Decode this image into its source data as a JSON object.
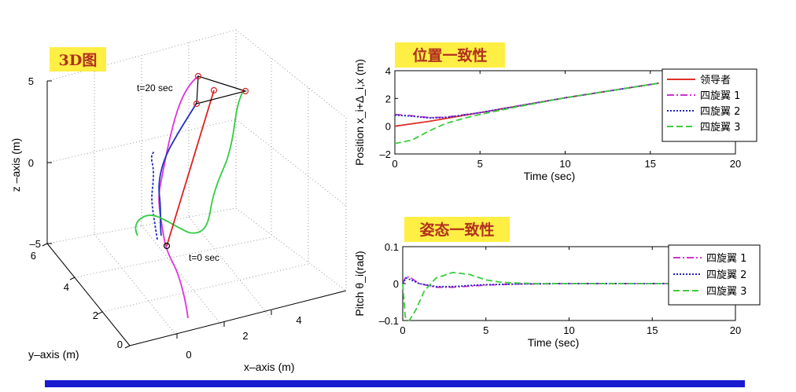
{
  "panel_3d": {
    "tag": "3D图",
    "xlabel": "x–axis (m)",
    "ylabel": "y–axis (m)",
    "zlabel": "z –axis (m)",
    "z_ticks": [
      "5",
      "0",
      "–5"
    ],
    "y_ticks": [
      "6",
      "4",
      "2",
      "0"
    ],
    "x_ticks": [
      "0",
      "2",
      "4"
    ],
    "annotation_end": "t=20 sec",
    "annotation_start": "t=0 sec"
  },
  "chart_data": [
    {
      "type": "line",
      "tag": "位置一致性",
      "xlabel": "Time (sec)",
      "ylabel": "Position x_i+Δ_i,x (m)",
      "xlim": [
        0,
        20
      ],
      "ylim": [
        -2,
        4
      ],
      "x_ticks": [
        "0",
        "5",
        "10",
        "15",
        "20"
      ],
      "y_ticks": [
        "4",
        "2",
        "0",
        "–2"
      ],
      "legend_position": "top-right",
      "series": [
        {
          "name": "领导者",
          "color": "#e0302a",
          "dash": "",
          "x": [
            0,
            2,
            5,
            10,
            15.5
          ],
          "y": [
            0,
            0.35,
            0.98,
            2.05,
            3.1
          ]
        },
        {
          "name": "四旋翼 1",
          "color": "#cc33cc",
          "dash": "9 3 2 3",
          "x": [
            0,
            1,
            2,
            3,
            5,
            10,
            15.5
          ],
          "y": [
            0.85,
            0.75,
            0.62,
            0.65,
            0.98,
            2.05,
            3.1
          ]
        },
        {
          "name": "四旋翼 2",
          "color": "#2222bb",
          "dash": "2 2",
          "x": [
            0,
            1,
            2,
            3,
            5,
            10,
            15.5
          ],
          "y": [
            0.8,
            0.72,
            0.6,
            0.63,
            0.98,
            2.05,
            3.1
          ]
        },
        {
          "name": "四旋翼 3",
          "color": "#3ecc3e",
          "dash": "8 4",
          "x": [
            0,
            1,
            2,
            3,
            4,
            5,
            7,
            10,
            15.5
          ],
          "y": [
            -1.25,
            -1.0,
            -0.35,
            0.2,
            0.55,
            0.85,
            1.35,
            2.05,
            3.1
          ]
        }
      ]
    },
    {
      "type": "line",
      "tag": "姿态一致性",
      "xlabel": "Time (sec)",
      "ylabel": "Pitch θ_i(rad)",
      "xlim": [
        0,
        20
      ],
      "ylim": [
        -0.1,
        0.1
      ],
      "x_ticks": [
        "0",
        "5",
        "10",
        "15",
        "20"
      ],
      "y_ticks": [
        "0.1",
        "0",
        "–0.1"
      ],
      "legend_position": "top-right",
      "series": [
        {
          "name": "四旋翼 1",
          "color": "#cc33cc",
          "dash": "9 3 2 3",
          "x": [
            0,
            0.2,
            0.5,
            1,
            2,
            3,
            4,
            5,
            7,
            10,
            16
          ],
          "y": [
            0,
            0.02,
            0.015,
            0.0,
            -0.01,
            -0.01,
            -0.007,
            -0.004,
            -0.001,
            0,
            0
          ]
        },
        {
          "name": "四旋翼 2",
          "color": "#2222bb",
          "dash": "2 2",
          "x": [
            0,
            0.2,
            0.5,
            1,
            2,
            3,
            4,
            5,
            7,
            10,
            16
          ],
          "y": [
            0,
            0.015,
            0.01,
            0.0,
            -0.008,
            -0.008,
            -0.005,
            -0.003,
            -0.001,
            0,
            0
          ]
        },
        {
          "name": "四旋翼 3",
          "color": "#3ecc3e",
          "dash": "8 4",
          "x": [
            0,
            0.15,
            0.4,
            0.8,
            1.3,
            2,
            3,
            4,
            5,
            6,
            8,
            10,
            16
          ],
          "y": [
            0,
            -0.09,
            -0.1,
            -0.07,
            -0.02,
            0.015,
            0.03,
            0.025,
            0.01,
            0.003,
            0,
            0,
            0
          ]
        }
      ]
    }
  ],
  "colors": {
    "tag_bg": "#ffee44",
    "tag_text": "#b03020",
    "bottom_bar": "#1a1ad0"
  }
}
